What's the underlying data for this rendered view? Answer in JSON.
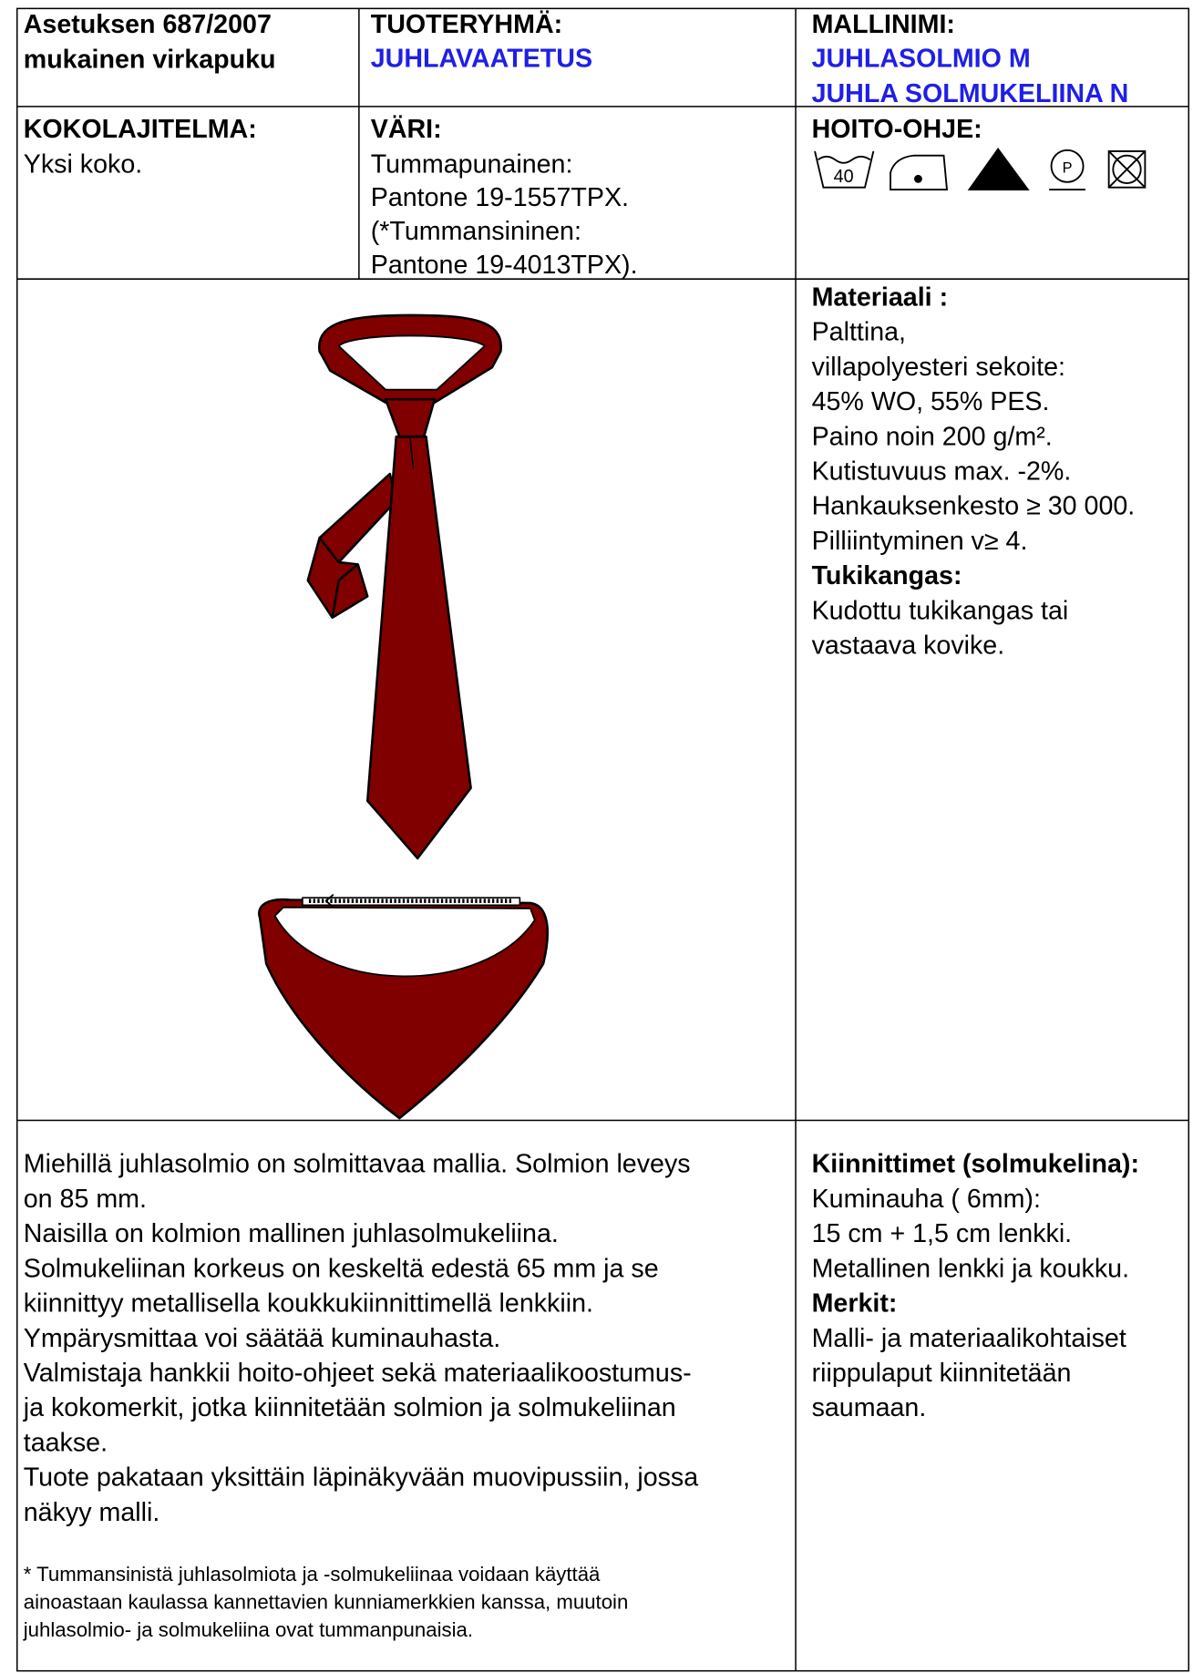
{
  "header": {
    "regulation": [
      "Asetuksen 687/2007",
      "mukainen virkapuku"
    ],
    "product_group": {
      "label": "TUOTERYHMÄ:",
      "value": "JUHLAVAATETUS"
    },
    "model_name": {
      "label": "MALLINIMI:",
      "values": [
        "JUHLASOLMIO M",
        "JUHLA SOLMUKELIINA N"
      ]
    }
  },
  "size": {
    "label": "KOKOLAJITELMA:",
    "value": "Yksi koko."
  },
  "color": {
    "label": "VÄRI:",
    "lines": [
      "Tummapunainen:",
      "Pantone 19-1557TPX.",
      "(*Tummansininen:",
      "Pantone 19-4013TPX)."
    ]
  },
  "care": {
    "label": "HOITO-OHJE:",
    "wash_temperature": "40",
    "dry_clean_letter": "P"
  },
  "material": {
    "label": "Materiaali :",
    "lines": [
      "Palttina,",
      "villapolyesteri sekoite:",
      "45% WO, 55% PES.",
      "Paino noin 200 g/m².",
      "Kutistuvuus max. -2%.",
      "Hankauksenkesto ≥ 30 000.",
      "Pilliintyminen v≥ 4."
    ],
    "backing_label": "Tukikangas:",
    "backing_lines": [
      "Kudottu tukikangas tai",
      "vastaava kovike."
    ]
  },
  "description": {
    "lines": [
      "Miehillä juhlasolmio on solmittavaa mallia. Solmion leveys",
      "on 85 mm.",
      "Naisilla on kolmion mallinen juhlasolmukeliina.",
      "Solmukeliinan korkeus on keskeltä edestä 65 mm ja se",
      "kiinnittyy metallisella koukkukiinnittimellä lenkkiin.",
      "Ympärysmittaa voi säätää kuminauhasta.",
      "Valmistaja hankkii hoito-ohjeet sekä materiaalikoostumus-",
      "ja kokomerkit, jotka kiinnitetään solmion ja solmukeliinan",
      "taakse.",
      "Tuote pakataan yksittäin läpinäkyvään muovipussiin, jossa",
      "näkyy malli."
    ],
    "footnote": [
      "* Tummansinistä juhlasolmiota ja -solmukeliinaa voidaan käyttää",
      "ainoastaan kaulassa kannettavien kunniamerkkien kanssa, muutoin",
      "juhlasolmio- ja solmukeliina ovat tummanpunaisia."
    ]
  },
  "fasteners": {
    "label": "Kiinnittimet (solmukelina):",
    "lines": [
      "Kuminauha ( 6mm):",
      "15 cm + 1,5 cm lenkki.",
      "Metallinen lenkki ja koukku."
    ],
    "markings_label": "Merkit:",
    "markings_lines": [
      "Malli- ja materiaalikohtaiset",
      "riippulaput kiinnitetään",
      "saumaan."
    ]
  }
}
